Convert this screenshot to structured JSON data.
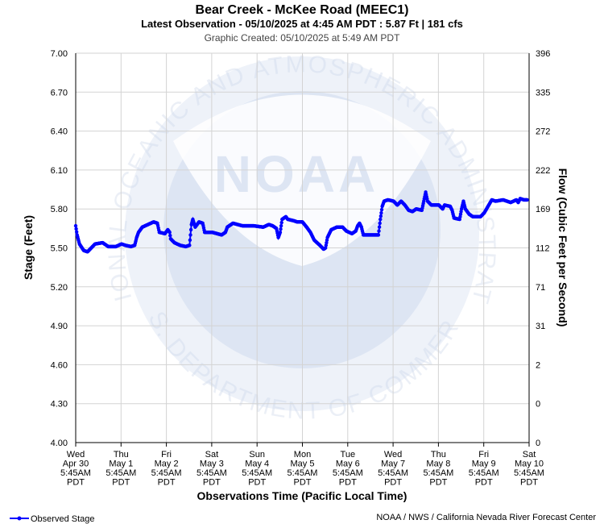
{
  "header": {
    "title": "Bear Creek - McKee Road (MEEC1)",
    "subtitle": "Latest Observation - 05/10/2025 at 4:45 AM PDT : 5.87 Ft | 181 cfs",
    "created": "Graphic Created: 05/10/2025 at 5:49 AM PDT"
  },
  "watermark": {
    "logo_text": "NOAA",
    "ring_top": "NATIONAL OCEANIC AND ATMOSPHERIC ADMINISTRATION",
    "ring_bottom": "U.S. DEPARTMENT OF COMMERCE"
  },
  "footer": {
    "legend_label": "Observed Stage",
    "credit": "NOAA / NWS / California Nevada River Forecast Center"
  },
  "colors": {
    "series": "#0000ff",
    "grid": "#d3d3d3",
    "watermark": "#dfe6f2"
  },
  "chart_data": {
    "type": "line",
    "xlabel": "Observations Time (Pacific Local Time)",
    "ylabel": "Stage (Feet)",
    "y2label": "Flow (Cubic Feet per Second)",
    "ylim": [
      4.0,
      7.0
    ],
    "xlim": [
      "2025-04-30 05:45",
      "2025-05-10 05:45"
    ],
    "grid": true,
    "legend": "bottom-left",
    "yticks": [
      "7.00",
      "6.70",
      "6.40",
      "6.10",
      "5.80",
      "5.50",
      "5.20",
      "4.90",
      "4.60",
      "4.30",
      "4.00"
    ],
    "y2ticks": [
      "396",
      "335",
      "272",
      "222",
      "169",
      "112",
      "71",
      "31",
      "2",
      "0",
      "0"
    ],
    "xticks": [
      [
        "Wed",
        "Apr 30",
        "5:45AM",
        "PDT"
      ],
      [
        "Thu",
        "May 1",
        "5:45AM",
        "PDT"
      ],
      [
        "Fri",
        "May 2",
        "5:45AM",
        "PDT"
      ],
      [
        "Sat",
        "May 3",
        "5:45AM",
        "PDT"
      ],
      [
        "Sun",
        "May 4",
        "5:45AM",
        "PDT"
      ],
      [
        "Mon",
        "May 5",
        "5:45AM",
        "PDT"
      ],
      [
        "Tue",
        "May 6",
        "5:45AM",
        "PDT"
      ],
      [
        "Wed",
        "May 7",
        "5:45AM",
        "PDT"
      ],
      [
        "Thu",
        "May 8",
        "5:45AM",
        "PDT"
      ],
      [
        "Fri",
        "May 9",
        "5:45AM",
        "PDT"
      ],
      [
        "Sat",
        "May 10",
        "5:45AM",
        "PDT"
      ]
    ],
    "series": [
      {
        "name": "Observed Stage",
        "points": [
          [
            "2025-04-30 05:45",
            5.67
          ],
          [
            "2025-04-30 06:30",
            5.6
          ],
          [
            "2025-04-30 07:45",
            5.53
          ],
          [
            "2025-04-30 10:00",
            5.48
          ],
          [
            "2025-04-30 12:00",
            5.47
          ],
          [
            "2025-04-30 14:00",
            5.5
          ],
          [
            "2025-04-30 16:00",
            5.53
          ],
          [
            "2025-04-30 20:00",
            5.54
          ],
          [
            "2025-04-30 23:00",
            5.51
          ],
          [
            "2025-05-01 03:00",
            5.51
          ],
          [
            "2025-05-01 06:00",
            5.53
          ],
          [
            "2025-05-01 08:00",
            5.52
          ],
          [
            "2025-05-01 11:00",
            5.51
          ],
          [
            "2025-05-01 13:00",
            5.52
          ],
          [
            "2025-05-01 14:00",
            5.58
          ],
          [
            "2025-05-01 15:00",
            5.62
          ],
          [
            "2025-05-01 17:00",
            5.66
          ],
          [
            "2025-05-01 20:00",
            5.68
          ],
          [
            "2025-05-01 23:00",
            5.7
          ],
          [
            "2025-05-02 01:00",
            5.69
          ],
          [
            "2025-05-02 02:00",
            5.62
          ],
          [
            "2025-05-02 05:00",
            5.61
          ],
          [
            "2025-05-02 06:30",
            5.64
          ],
          [
            "2025-05-02 07:30",
            5.62
          ],
          [
            "2025-05-02 08:00",
            5.57
          ],
          [
            "2025-05-02 10:00",
            5.54
          ],
          [
            "2025-05-02 13:00",
            5.52
          ],
          [
            "2025-05-02 16:00",
            5.51
          ],
          [
            "2025-05-02 18:00",
            5.52
          ],
          [
            "2025-05-02 19:00",
            5.68
          ],
          [
            "2025-05-02 19:45",
            5.72
          ],
          [
            "2025-05-02 21:00",
            5.66
          ],
          [
            "2025-05-02 23:00",
            5.7
          ],
          [
            "2025-05-03 01:00",
            5.69
          ],
          [
            "2025-05-03 02:00",
            5.62
          ],
          [
            "2025-05-03 06:00",
            5.62
          ],
          [
            "2025-05-03 11:00",
            5.6
          ],
          [
            "2025-05-03 13:00",
            5.62
          ],
          [
            "2025-05-03 14:00",
            5.66
          ],
          [
            "2025-05-03 17:00",
            5.69
          ],
          [
            "2025-05-03 22:00",
            5.67
          ],
          [
            "2025-05-04 04:00",
            5.67
          ],
          [
            "2025-05-04 09:00",
            5.66
          ],
          [
            "2025-05-04 12:00",
            5.68
          ],
          [
            "2025-05-04 14:00",
            5.67
          ],
          [
            "2025-05-04 16:00",
            5.65
          ],
          [
            "2025-05-04 17:00",
            5.58
          ],
          [
            "2025-05-04 18:00",
            5.62
          ],
          [
            "2025-05-04 19:00",
            5.72
          ],
          [
            "2025-05-04 21:00",
            5.74
          ],
          [
            "2025-05-04 22:00",
            5.72
          ],
          [
            "2025-05-05 01:00",
            5.71
          ],
          [
            "2025-05-05 03:00",
            5.7
          ],
          [
            "2025-05-05 05:45",
            5.7
          ],
          [
            "2025-05-05 08:00",
            5.66
          ],
          [
            "2025-05-05 10:00",
            5.62
          ],
          [
            "2025-05-05 12:00",
            5.56
          ],
          [
            "2025-05-05 15:00",
            5.52
          ],
          [
            "2025-05-05 17:00",
            5.49
          ],
          [
            "2025-05-05 18:00",
            5.5
          ],
          [
            "2025-05-05 19:00",
            5.58
          ],
          [
            "2025-05-05 21:00",
            5.64
          ],
          [
            "2025-05-06 00:00",
            5.66
          ],
          [
            "2025-05-06 03:00",
            5.66
          ],
          [
            "2025-05-06 05:00",
            5.63
          ],
          [
            "2025-05-06 08:00",
            5.61
          ],
          [
            "2025-05-06 10:00",
            5.63
          ],
          [
            "2025-05-06 11:00",
            5.67
          ],
          [
            "2025-05-06 12:00",
            5.69
          ],
          [
            "2025-05-06 13:00",
            5.66
          ],
          [
            "2025-05-06 14:00",
            5.6
          ],
          [
            "2025-05-06 18:00",
            5.6
          ],
          [
            "2025-05-06 22:00",
            5.6
          ],
          [
            "2025-05-06 23:00",
            5.72
          ],
          [
            "2025-05-07 00:00",
            5.82
          ],
          [
            "2025-05-07 01:00",
            5.86
          ],
          [
            "2025-05-07 03:00",
            5.87
          ],
          [
            "2025-05-07 06:00",
            5.86
          ],
          [
            "2025-05-07 08:00",
            5.83
          ],
          [
            "2025-05-07 10:00",
            5.86
          ],
          [
            "2025-05-07 12:00",
            5.83
          ],
          [
            "2025-05-07 14:00",
            5.79
          ],
          [
            "2025-05-07 16:00",
            5.78
          ],
          [
            "2025-05-07 18:00",
            5.8
          ],
          [
            "2025-05-07 21:00",
            5.79
          ],
          [
            "2025-05-07 22:00",
            5.86
          ],
          [
            "2025-05-07 23:00",
            5.93
          ],
          [
            "2025-05-08 00:00",
            5.86
          ],
          [
            "2025-05-08 02:00",
            5.83
          ],
          [
            "2025-05-08 06:00",
            5.83
          ],
          [
            "2025-05-08 08:00",
            5.8
          ],
          [
            "2025-05-08 09:00",
            5.83
          ],
          [
            "2025-05-08 12:00",
            5.82
          ],
          [
            "2025-05-08 13:00",
            5.79
          ],
          [
            "2025-05-08 14:00",
            5.73
          ],
          [
            "2025-05-08 17:00",
            5.72
          ],
          [
            "2025-05-08 18:00",
            5.8
          ],
          [
            "2025-05-08 19:00",
            5.86
          ],
          [
            "2025-05-08 20:00",
            5.8
          ],
          [
            "2025-05-08 22:00",
            5.76
          ],
          [
            "2025-05-09 00:00",
            5.74
          ],
          [
            "2025-05-09 04:00",
            5.74
          ],
          [
            "2025-05-09 06:00",
            5.77
          ],
          [
            "2025-05-09 08:00",
            5.82
          ],
          [
            "2025-05-09 10:00",
            5.87
          ],
          [
            "2025-05-09 12:00",
            5.86
          ],
          [
            "2025-05-09 16:00",
            5.87
          ],
          [
            "2025-05-09 20:00",
            5.85
          ],
          [
            "2025-05-09 23:00",
            5.87
          ],
          [
            "2025-05-10 00:00",
            5.85
          ],
          [
            "2025-05-10 01:00",
            5.88
          ],
          [
            "2025-05-10 03:00",
            5.87
          ],
          [
            "2025-05-10 04:45",
            5.87
          ]
        ]
      }
    ]
  }
}
